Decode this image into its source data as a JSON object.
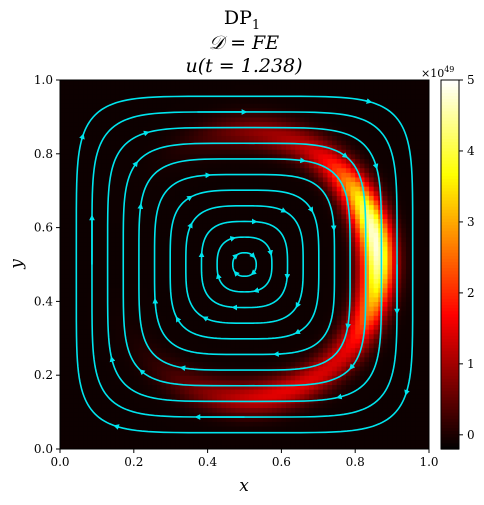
{
  "chart_data": {
    "type": "heatmap",
    "title_lines": [
      "DP",
      "𝒟 = FE",
      "u(t = 1.238)"
    ],
    "title_subscript": "1",
    "xlabel": "x",
    "ylabel": "y",
    "xlim": [
      0.0,
      1.0
    ],
    "ylim": [
      0.0,
      1.0
    ],
    "x_ticks": [
      "0.0",
      "0.2",
      "0.4",
      "0.6",
      "0.8",
      "1.0"
    ],
    "y_ticks": [
      "0.0",
      "0.2",
      "0.4",
      "0.6",
      "0.8",
      "1.0"
    ],
    "colorbar": {
      "colormap": "hot",
      "range": [
        -0.2,
        5.0
      ],
      "ticks": [
        "0",
        "1",
        "2",
        "3",
        "4",
        "5"
      ],
      "multiplier": "×10",
      "multiplier_exponent": "49"
    },
    "field": {
      "description": "crescent-shaped concentration band",
      "peak_value": 4.9,
      "center": [
        0.5,
        0.5
      ],
      "radius": 0.36,
      "angular_peak_deg": 10,
      "angular_extent_deg": [
        -110,
        95
      ]
    },
    "streamlines": {
      "color": "#00e5ee",
      "pattern": "single clockwise vortex centered at (0.5, 0.5)",
      "radii": [
        0.03,
        0.07,
        0.11,
        0.15,
        0.19,
        0.23,
        0.27,
        0.31,
        0.35,
        0.39,
        0.43
      ]
    }
  }
}
